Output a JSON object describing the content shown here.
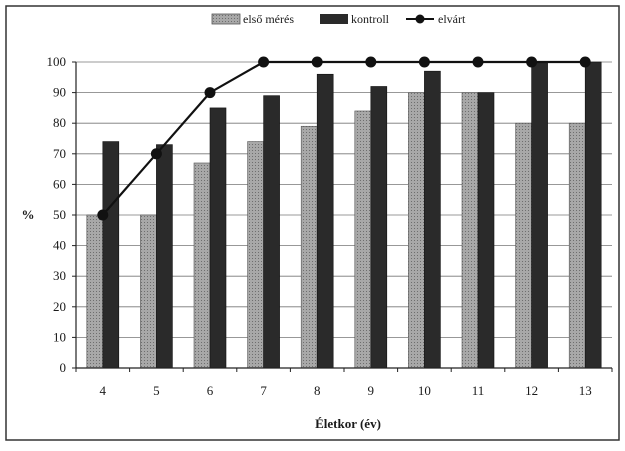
{
  "chart_data": {
    "type": "bar",
    "categories": [
      "4",
      "5",
      "6",
      "7",
      "8",
      "9",
      "10",
      "11",
      "12",
      "13"
    ],
    "series": [
      {
        "name": "első mérés",
        "kind": "bar",
        "color": "#9a9a9a",
        "values": [
          50,
          50,
          67,
          74,
          79,
          84,
          90,
          90,
          80,
          80
        ]
      },
      {
        "name": "kontroll",
        "kind": "bar",
        "color": "#2a2a2a",
        "values": [
          74,
          73,
          85,
          89,
          96,
          92,
          97,
          90,
          100,
          100
        ]
      },
      {
        "name": "elvárt",
        "kind": "line",
        "color": "#111111",
        "values": [
          50,
          70,
          90,
          100,
          100,
          100,
          100,
          100,
          100,
          100
        ]
      }
    ],
    "xlabel": "Életkor (év)",
    "ylabel": "%",
    "ylim": [
      0,
      100
    ],
    "yticks": [
      0,
      10,
      20,
      30,
      40,
      50,
      60,
      70,
      80,
      90,
      100
    ],
    "grid": "horizontal",
    "legend_position": "top"
  }
}
